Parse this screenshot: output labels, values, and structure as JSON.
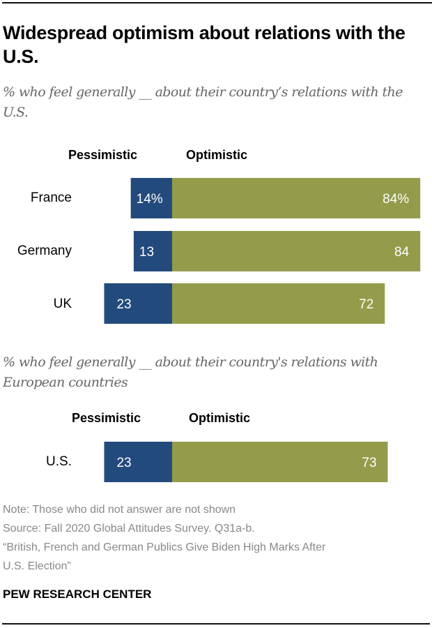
{
  "title": "Widespread optimism about relations with the U.S.",
  "colors": {
    "pessimistic": "#234a7c",
    "optimistic": "#949c4b",
    "label_text": "#ffffff"
  },
  "chart_data": [
    {
      "type": "bar",
      "orientation": "horizontal-diverging-stacked",
      "subtitle": "% who feel generally __ about their country’s relations with the U.S.",
      "legend": [
        "Pessimistic",
        "Optimistic"
      ],
      "categories": [
        "France",
        "Germany",
        "UK"
      ],
      "series": [
        {
          "name": "Pessimistic",
          "values": [
            14,
            13,
            23
          ],
          "labels": [
            "14%",
            "13",
            "23"
          ]
        },
        {
          "name": "Optimistic",
          "values": [
            84,
            84,
            72
          ],
          "labels": [
            "84%",
            "84",
            "72"
          ]
        }
      ]
    },
    {
      "type": "bar",
      "orientation": "horizontal-diverging-stacked",
      "subtitle": "% who feel generally __ about their country's relations with European countries",
      "legend": [
        "Pessimistic",
        "Optimistic"
      ],
      "categories": [
        "U.S."
      ],
      "series": [
        {
          "name": "Pessimistic",
          "values": [
            23
          ],
          "labels": [
            "23"
          ]
        },
        {
          "name": "Optimistic",
          "values": [
            73
          ],
          "labels": [
            "73"
          ]
        }
      ]
    }
  ],
  "notes": {
    "note": "Note: Those who did not answer are not shown",
    "source": "Source: Fall 2020 Global Attitudes Survey. Q31a-b.",
    "report_line1": "“British, French and German Publics Give Biden High Marks After",
    "report_line2": "U.S. Election”"
  },
  "brand": "PEW RESEARCH CENTER"
}
